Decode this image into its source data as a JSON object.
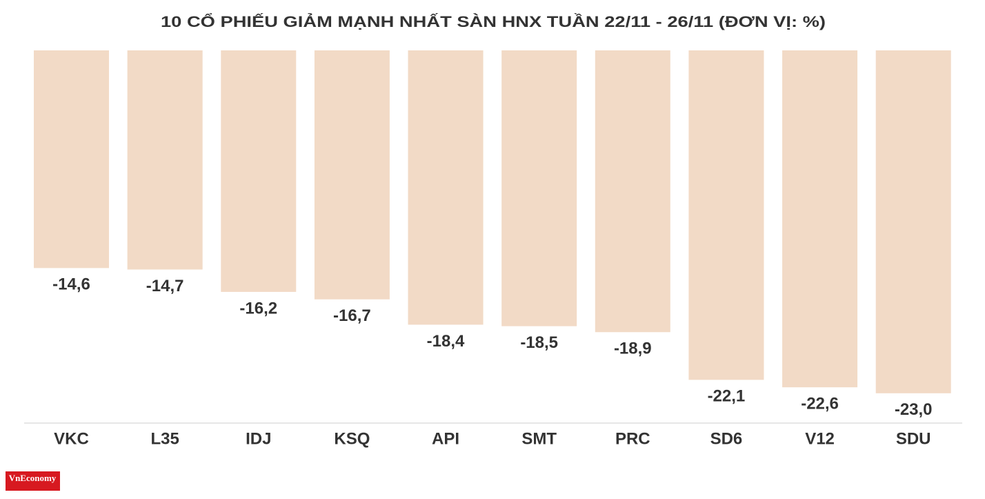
{
  "chart_data": {
    "type": "bar",
    "title": "10 CỔ PHIẾU GIẢM MẠNH NHẤT SÀN HNX TUẦN 22/11 - 26/11 (ĐƠN VỊ: %)",
    "categories": [
      "VKC",
      "L35",
      "IDJ",
      "KSQ",
      "API",
      "SMT",
      "PRC",
      "SD6",
      "V12",
      "SDU"
    ],
    "values": [
      -14.6,
      -14.7,
      -16.2,
      -16.7,
      -18.4,
      -18.5,
      -18.9,
      -22.1,
      -22.6,
      -23.0
    ],
    "value_labels": [
      "-14,6",
      "-14,7",
      "-16,2",
      "-16,7",
      "-18,4",
      "-18,5",
      "-18,9",
      "-22,1",
      "-22,6",
      "-23,0"
    ],
    "color": "#f2dac6",
    "ylim": [
      -25,
      0
    ]
  },
  "logo": "VnEconomy"
}
